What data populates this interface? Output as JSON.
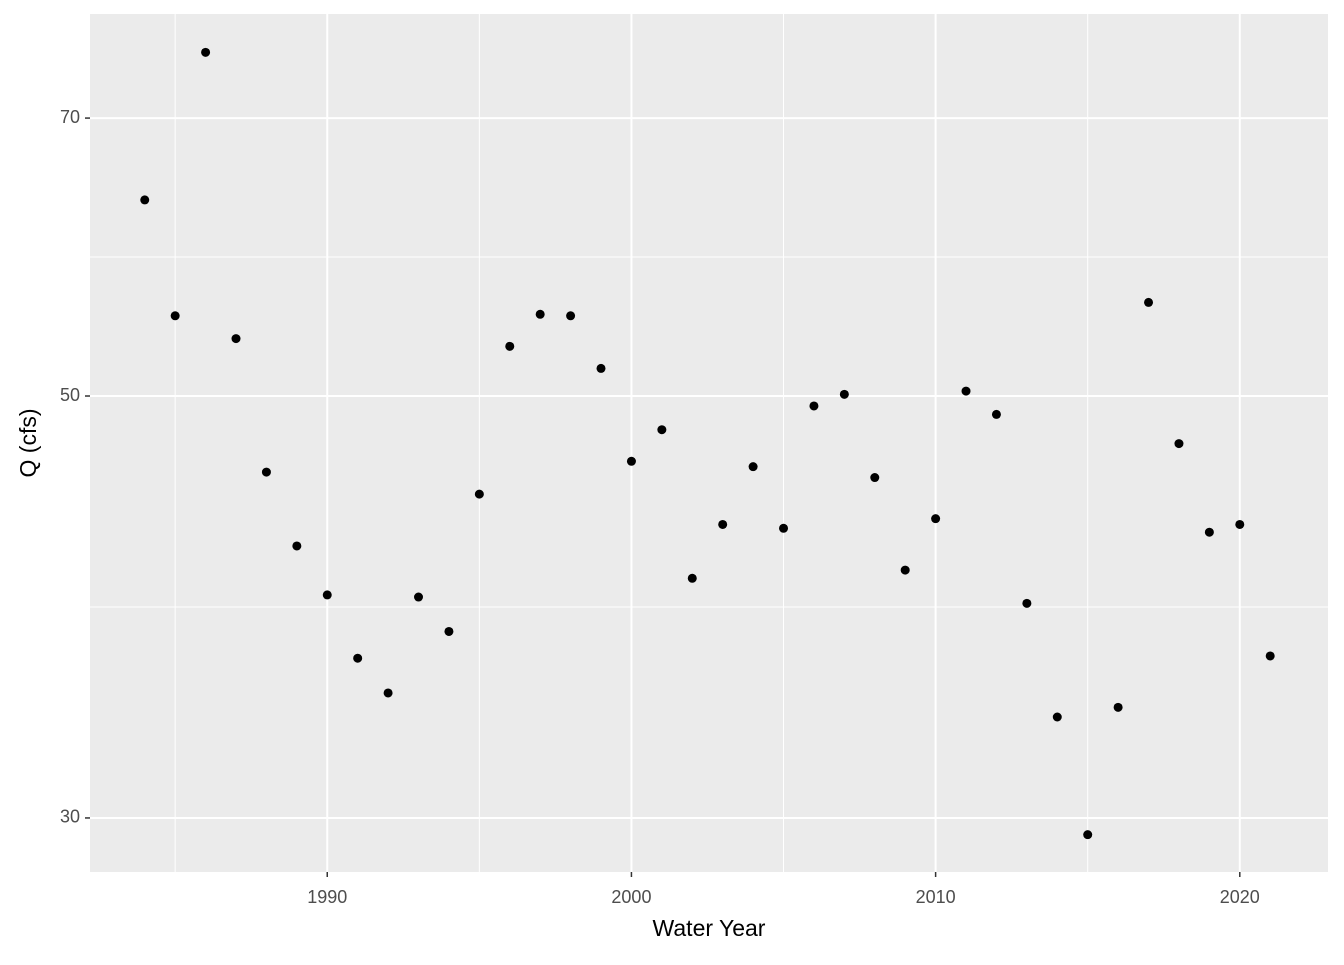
{
  "chart_data": {
    "type": "scatter",
    "x_label": "Water Year",
    "y_label": "Q (cfs)",
    "x": [
      1984,
      1985,
      1986,
      1987,
      1988,
      1989,
      1990,
      1991,
      1992,
      1993,
      1994,
      1995,
      1996,
      1997,
      1998,
      1999,
      2000,
      2001,
      2002,
      2003,
      2004,
      2005,
      2006,
      2007,
      2008,
      2009,
      2010,
      2011,
      2012,
      2013,
      2014,
      2015,
      2016,
      2017,
      2018,
      2019,
      2020,
      2021
    ],
    "values": [
      63.4,
      55.1,
      75.8,
      53.6,
      45.6,
      41.7,
      39.3,
      36.4,
      34.9,
      39.2,
      37.6,
      44.4,
      53.1,
      55.2,
      55.1,
      51.7,
      46.2,
      48.0,
      40.1,
      42.8,
      45.9,
      42.6,
      49.4,
      50.1,
      45.3,
      40.5,
      43.1,
      50.3,
      48.9,
      38.9,
      33.9,
      29.4,
      34.3,
      56.0,
      47.2,
      42.4,
      42.8,
      36.5
    ],
    "color": "#000000",
    "xlim": [
      1982.2,
      2022.9
    ],
    "xticks": [
      1990,
      2000,
      2010,
      2020
    ],
    "ylim": [
      28.1,
      79.4
    ],
    "yticks": [
      30,
      50,
      70
    ],
    "ylog": true,
    "grid": true
  }
}
